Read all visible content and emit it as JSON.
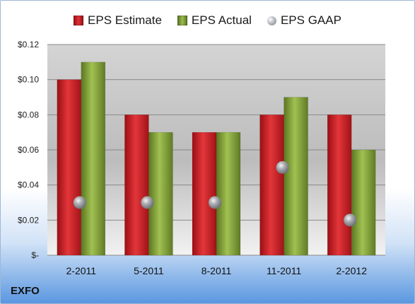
{
  "chart_data": {
    "type": "bar",
    "categories": [
      "2-2011",
      "5-2011",
      "8-2011",
      "11-2011",
      "2-2012"
    ],
    "series": [
      {
        "name": "EPS Estimate",
        "values": [
          0.1,
          0.08,
          0.07,
          0.08,
          0.08
        ],
        "color": "#c41a1f",
        "mark": "bar"
      },
      {
        "name": "EPS Actual",
        "values": [
          0.11,
          0.07,
          0.07,
          0.09,
          0.06
        ],
        "color": "#7d9c35",
        "mark": "bar"
      },
      {
        "name": "EPS GAAP",
        "values": [
          0.03,
          0.03,
          0.03,
          0.05,
          0.02
        ],
        "color": "#a6a9ae",
        "mark": "sphere"
      }
    ],
    "ylim": [
      0,
      0.12
    ],
    "yticks": [
      {
        "value": 0.12,
        "label": "$0.12"
      },
      {
        "value": 0.1,
        "label": "$0.10"
      },
      {
        "value": 0.08,
        "label": "$0.08"
      },
      {
        "value": 0.06,
        "label": "$0.06"
      },
      {
        "value": 0.04,
        "label": "$0.04"
      },
      {
        "value": 0.02,
        "label": "$0.02"
      },
      {
        "value": 0,
        "label": "$-"
      }
    ],
    "grid": true,
    "legend_position": "top"
  },
  "ticker": "EXFO"
}
